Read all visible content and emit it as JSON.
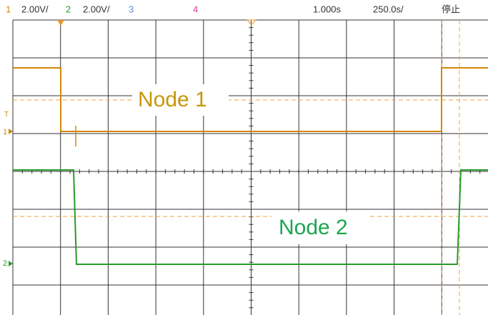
{
  "header": {
    "ch1": "1",
    "ch1_scale": "2.00V/",
    "ch2": "2",
    "ch2_scale": "2.00V/",
    "ch3": "3",
    "ch4": "4",
    "time_position": "1.000s",
    "time_scale": "250.0s/",
    "status": "停止"
  },
  "markers": {
    "trigger": "T",
    "ch1": "1",
    "ch2": "2"
  },
  "labels": {
    "node1": "Node 1",
    "node2": "Node 2"
  }
}
